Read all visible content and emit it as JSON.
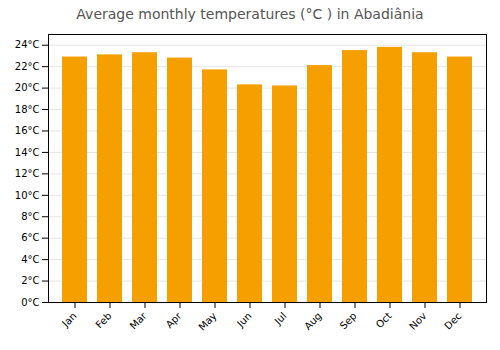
{
  "chart_data": {
    "type": "bar",
    "title": "Average monthly temperatures (°C ) in Abadiânia",
    "categories": [
      "Jan",
      "Feb",
      "Mar",
      "Apr",
      "May",
      "Jun",
      "Jul",
      "Aug",
      "Sep",
      "Oct",
      "Nov",
      "Dec"
    ],
    "values": [
      22.9,
      23.1,
      23.3,
      22.8,
      21.7,
      20.3,
      20.2,
      22.1,
      23.5,
      23.8,
      23.3,
      22.9
    ],
    "color": "#F5A000",
    "ylim": [
      0,
      25
    ],
    "yticks": [
      {
        "value": 0,
        "label": "0°C"
      },
      {
        "value": 2,
        "label": "2°C"
      },
      {
        "value": 4,
        "label": "4°C"
      },
      {
        "value": 6,
        "label": "6°C"
      },
      {
        "value": 8,
        "label": "8°C"
      },
      {
        "value": 10,
        "label": "10°C"
      },
      {
        "value": 12,
        "label": "12°C"
      },
      {
        "value": 14,
        "label": "14°C"
      },
      {
        "value": 16,
        "label": "16°C"
      },
      {
        "value": 18,
        "label": "18°C"
      },
      {
        "value": 20,
        "label": "20°C"
      },
      {
        "value": 22,
        "label": "22°C"
      },
      {
        "value": 24,
        "label": "24°C"
      }
    ],
    "grid": true
  }
}
